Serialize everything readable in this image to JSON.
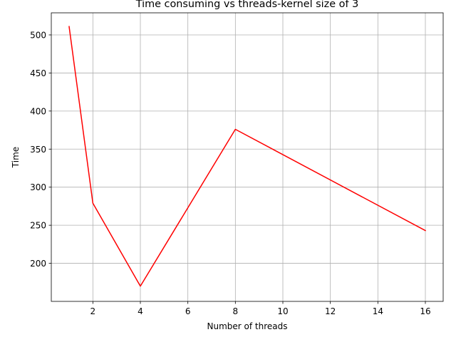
{
  "chart_data": {
    "type": "line",
    "title": "Time consuming vs threads-kernel size of 3",
    "xlabel": "Number of threads",
    "ylabel": "Time",
    "xlim": [
      0.25,
      16.75
    ],
    "ylim": [
      150.0,
      529.0
    ],
    "x_ticks": [
      2,
      4,
      6,
      8,
      10,
      12,
      14,
      16
    ],
    "y_ticks": [
      200,
      250,
      300,
      350,
      400,
      450,
      500
    ],
    "grid": true,
    "series": [
      {
        "color": "#ff0000",
        "x": [
          1,
          2,
          4,
          8,
          16
        ],
        "y": [
          511,
          279,
          170,
          376,
          243
        ]
      }
    ]
  }
}
